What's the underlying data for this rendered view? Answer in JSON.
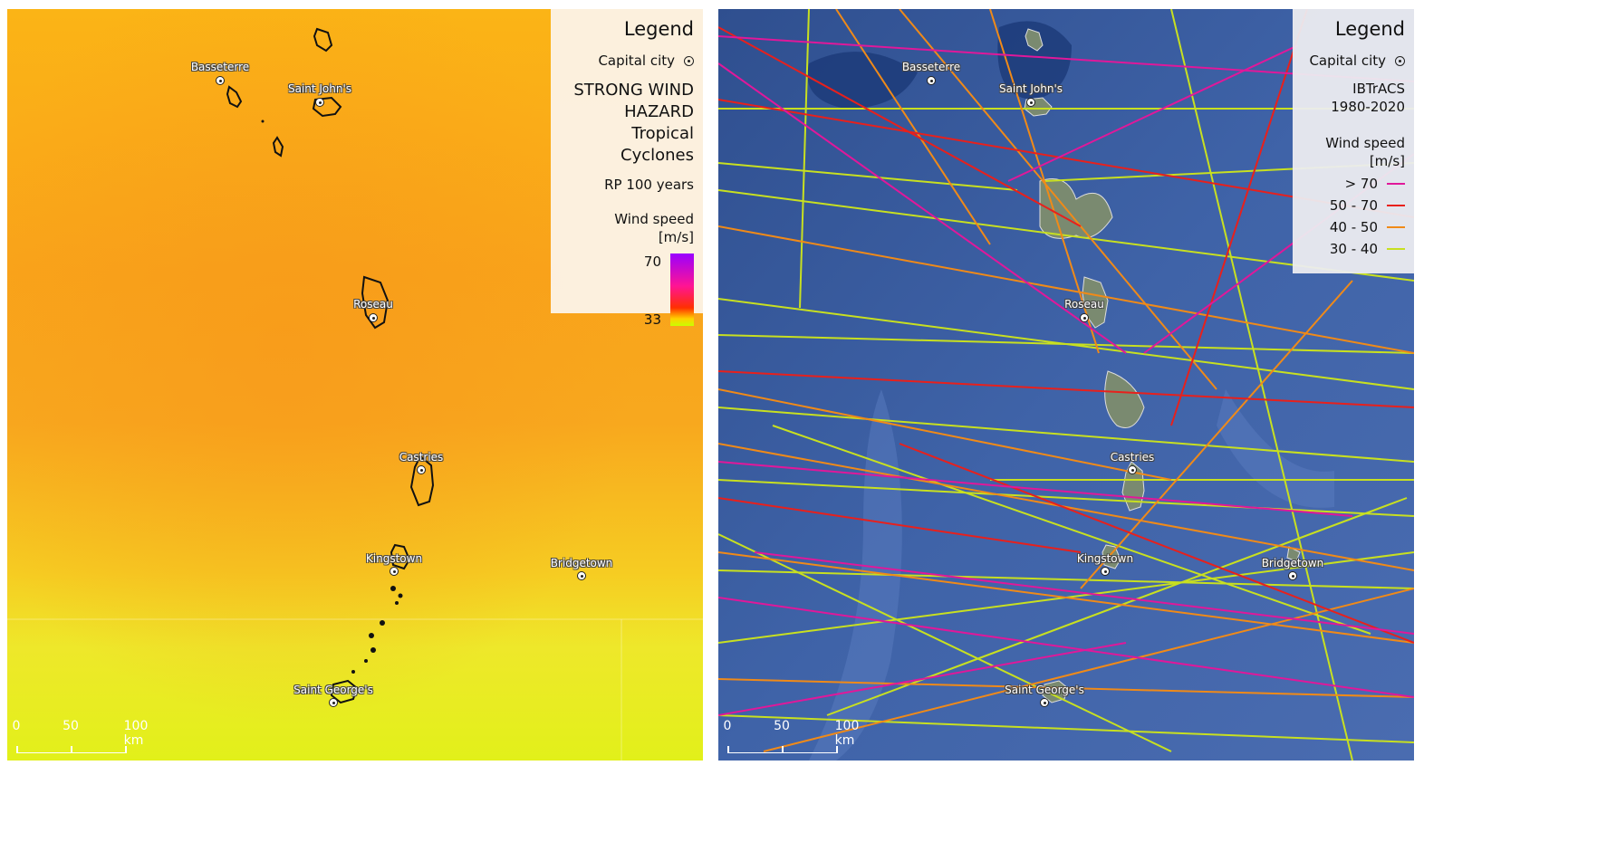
{
  "left_map": {
    "legend": {
      "title": "Legend",
      "capital_label": "Capital city",
      "hazard_line1": "STRONG WIND",
      "hazard_line2": "HAZARD",
      "hazard_line3": "Tropical Cyclones",
      "return_period": "RP 100 years",
      "wind_label": "Wind speed",
      "wind_unit": "[m/s]",
      "ramp_max": "70",
      "ramp_min": "33"
    },
    "scale": {
      "t0": "0",
      "t1": "50",
      "t2": "100 km"
    }
  },
  "right_map": {
    "legend": {
      "title": "Legend",
      "capital_label": "Capital city",
      "source_line1": "IBTrACS",
      "source_line2": "1980-2020",
      "wind_label": "Wind speed",
      "wind_unit": "[m/s]",
      "classes": [
        {
          "label": "> 70",
          "color": "#e0189a"
        },
        {
          "label": "50 - 70",
          "color": "#e8201c"
        },
        {
          "label": "40 - 50",
          "color": "#f08a18"
        },
        {
          "label": "30 - 40",
          "color": "#c8e020"
        }
      ]
    },
    "scale": {
      "t0": "0",
      "t1": "50",
      "t2": "100 km"
    }
  },
  "cities": [
    {
      "name": "Basseterre"
    },
    {
      "name": "Saint John's"
    },
    {
      "name": "Roseau"
    },
    {
      "name": "Castries"
    },
    {
      "name": "Kingstown"
    },
    {
      "name": "Bridgetown"
    },
    {
      "name": "Saint George's"
    }
  ],
  "colors": {
    "hazard_orange": "#f8a818",
    "hazard_yellow": "#e8f018",
    "ocean_blue": "#3a5a98"
  }
}
